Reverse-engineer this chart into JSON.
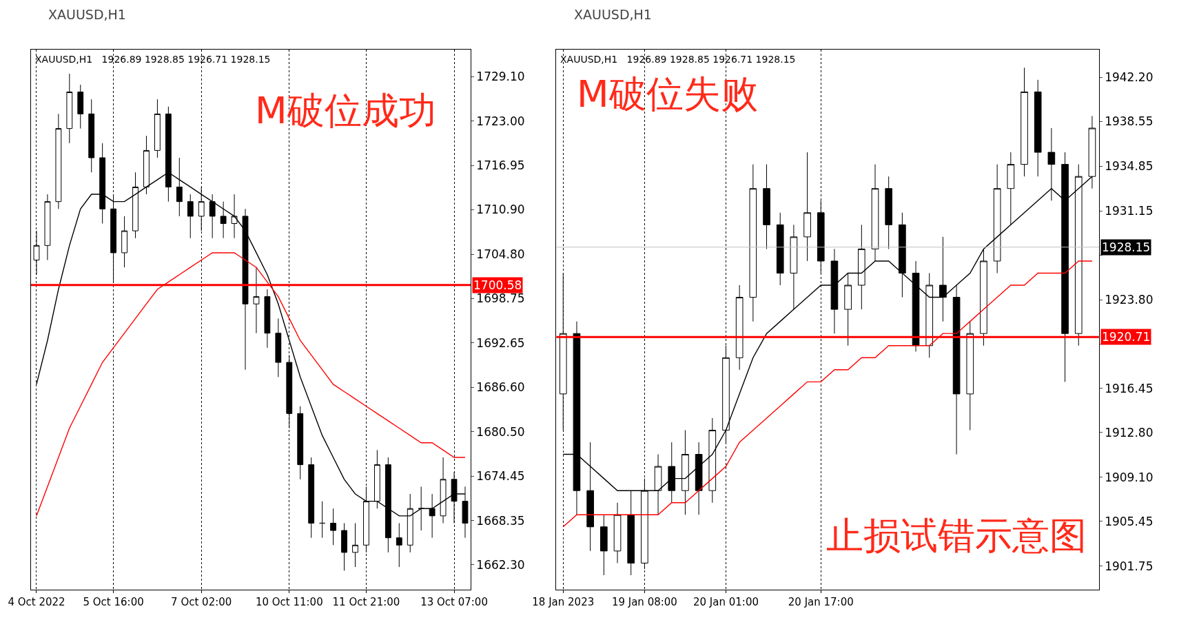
{
  "chart_data": [
    {
      "type": "candlestick",
      "title": "XAUUSD,H1",
      "annotations": [
        "XAUUSD,H1   1926.89 1928.85 1926.71 1928.15",
        "M破位成功"
      ],
      "categories": [
        "4 Oct 2022",
        null,
        null,
        null,
        null,
        null,
        null,
        "5 Oct 16:00",
        null,
        null,
        null,
        null,
        null,
        null,
        null,
        "7 Oct 02:00",
        null,
        null,
        null,
        null,
        null,
        null,
        null,
        "10 Oct 11:00",
        null,
        null,
        null,
        null,
        null,
        null,
        "11 Oct 21:00",
        null,
        null,
        null,
        null,
        null,
        null,
        null,
        "13 Oct 07:00",
        null
      ],
      "ohlc": [
        [
          1704,
          1708,
          1702,
          1706
        ],
        [
          1706,
          1713,
          1704,
          1712
        ],
        [
          1712,
          1724,
          1711,
          1722
        ],
        [
          1722,
          1729.5,
          1720,
          1727
        ],
        [
          1727,
          1728,
          1722,
          1724
        ],
        [
          1724,
          1726,
          1716,
          1718
        ],
        [
          1718,
          1720,
          1709,
          1711
        ],
        [
          1711,
          1713,
          1701,
          1705
        ],
        [
          1705,
          1710,
          1703,
          1708
        ],
        [
          1708,
          1716,
          1707,
          1714
        ],
        [
          1714,
          1721,
          1713,
          1719
        ],
        [
          1719,
          1726,
          1718,
          1724
        ],
        [
          1724,
          1725,
          1712,
          1714
        ],
        [
          1714,
          1718,
          1710,
          1712
        ],
        [
          1712,
          1713,
          1707,
          1710
        ],
        [
          1710,
          1714,
          1708,
          1712
        ],
        [
          1712,
          1713,
          1707,
          1710
        ],
        [
          1710,
          1712,
          1707,
          1709
        ],
        [
          1709,
          1713,
          1707,
          1710
        ],
        [
          1710,
          1711,
          1689,
          1698
        ],
        [
          1698,
          1703,
          1694,
          1699
        ],
        [
          1699,
          1700,
          1692,
          1694
        ],
        [
          1694,
          1696,
          1688,
          1690
        ],
        [
          1690,
          1691,
          1681,
          1683
        ],
        [
          1683,
          1684,
          1674,
          1676
        ],
        [
          1676,
          1677,
          1666,
          1668
        ],
        [
          1668,
          1671,
          1666,
          1668
        ],
        [
          1668,
          1670,
          1665,
          1667
        ],
        [
          1667,
          1668,
          1661.5,
          1664
        ],
        [
          1664,
          1668,
          1662,
          1665
        ],
        [
          1665,
          1673,
          1664,
          1671
        ],
        [
          1671,
          1678,
          1670,
          1676
        ],
        [
          1676,
          1677,
          1664,
          1666
        ],
        [
          1666,
          1668,
          1662,
          1665
        ],
        [
          1665,
          1672,
          1664,
          1670
        ],
        [
          1670,
          1673,
          1667,
          1670
        ],
        [
          1670,
          1672,
          1666,
          1669
        ],
        [
          1669,
          1677,
          1668,
          1674
        ],
        [
          1674,
          1675,
          1668,
          1671
        ],
        [
          1671,
          1673,
          1666,
          1668
        ]
      ],
      "series": [
        {
          "type": "line",
          "color": "#000000",
          "values": [
            1687,
            1693,
            1700,
            1706,
            1711,
            1713,
            1713,
            1712,
            1712,
            1713,
            1714,
            1715,
            1716,
            1715,
            1714,
            1713,
            1712,
            1711,
            1710,
            1708,
            1705,
            1702,
            1698,
            1693,
            1688,
            1684,
            1680,
            1677,
            1674,
            1672,
            1671,
            1671,
            1670,
            1669,
            1669,
            1670,
            1670,
            1671,
            1672,
            1672
          ]
        },
        {
          "type": "line",
          "color": "#ff0000",
          "values": [
            1669,
            1673,
            1677,
            1681,
            1684,
            1687,
            1690,
            1692,
            1694,
            1696,
            1698,
            1700,
            1701,
            1702,
            1703,
            1704,
            1705,
            1705,
            1705,
            1704,
            1703,
            1701,
            1699,
            1696,
            1693,
            1691,
            1689,
            1687,
            1686,
            1685,
            1684,
            1683,
            1682,
            1681,
            1680,
            1679,
            1679,
            1678,
            1677,
            1677
          ]
        }
      ],
      "ylim": [
        1658.9,
        1732.8
      ],
      "yticks": [
        {
          "value": 1729.1,
          "label": "1729.10"
        },
        {
          "value": 1723,
          "label": "1723.00"
        },
        1716.95,
        {
          "value": 1710.9,
          "label": "1710.90"
        },
        {
          "value": 1704.8,
          "label": "1704.80"
        },
        1698.75,
        1692.65,
        {
          "value": 1686.6,
          "label": "1686.60"
        },
        {
          "value": 1680.5,
          "label": "1680.50"
        },
        1674.45,
        1668.35,
        {
          "value": 1662.3,
          "label": "1662.30"
        }
      ],
      "ref_lines": [
        {
          "axis": "y",
          "value": 1700.58,
          "label": "1700.58",
          "color": "#ff0000"
        }
      ],
      "grid": "x",
      "legend": false
    },
    {
      "type": "candlestick",
      "title": "XAUUSD,H1",
      "annotations": [
        "XAUUSD,H1   1926.89 1928.85 1926.71 1928.15",
        "M破位失败",
        "止损试错示意图"
      ],
      "categories": [
        "18 Jan 2023",
        null,
        null,
        null,
        null,
        null,
        "19 Jan 08:00",
        null,
        null,
        null,
        null,
        null,
        "20 Jan 01:00",
        null,
        null,
        null,
        null,
        null,
        null,
        "20 Jan 17:00",
        null,
        null,
        null,
        null,
        null,
        null,
        null,
        null,
        null,
        null,
        null,
        null,
        null,
        null,
        null,
        null,
        null,
        null,
        null,
        null
      ],
      "ohlc": [
        [
          1916,
          1926,
          1913,
          1921
        ],
        [
          1921,
          1922,
          1906,
          1908
        ],
        [
          1908,
          1912,
          1903,
          1905
        ],
        [
          1905,
          1906,
          1901,
          1903
        ],
        [
          1903,
          1907,
          1902,
          1906
        ],
        [
          1906,
          1908,
          1901,
          1902
        ],
        [
          1902,
          1909,
          1901.5,
          1908
        ],
        [
          1908,
          1911,
          1906,
          1910
        ],
        [
          1910,
          1912,
          1907,
          1908
        ],
        [
          1908,
          1913,
          1906,
          1911
        ],
        [
          1911,
          1912,
          1906,
          1908
        ],
        [
          1908,
          1914,
          1907,
          1913
        ],
        [
          1913,
          1920,
          1912,
          1919
        ],
        [
          1919,
          1925,
          1918,
          1924
        ],
        [
          1924,
          1935,
          1922,
          1933
        ],
        [
          1933,
          1935,
          1928,
          1930
        ],
        [
          1930,
          1931,
          1925,
          1926
        ],
        [
          1926,
          1930,
          1923,
          1929
        ],
        [
          1929,
          1936,
          1927,
          1931
        ],
        [
          1931,
          1932,
          1926,
          1927
        ],
        [
          1927,
          1928,
          1921,
          1923
        ],
        [
          1923,
          1926,
          1920,
          1925
        ],
        [
          1925,
          1930,
          1923,
          1928
        ],
        [
          1928,
          1935,
          1927,
          1933
        ],
        [
          1933,
          1934,
          1928,
          1930
        ],
        [
          1930,
          1931,
          1924,
          1926
        ],
        [
          1926,
          1927,
          1919.5,
          1920
        ],
        [
          1920,
          1926,
          1919,
          1925
        ],
        [
          1925,
          1929,
          1922,
          1924
        ],
        [
          1924,
          1925,
          1911,
          1916
        ],
        [
          1916,
          1922,
          1913,
          1921
        ],
        [
          1921,
          1928,
          1920,
          1927
        ],
        [
          1927,
          1935,
          1926,
          1933
        ],
        [
          1933,
          1936,
          1930,
          1935
        ],
        [
          1935,
          1943,
          1934,
          1941
        ],
        [
          1941,
          1942,
          1934,
          1936
        ],
        [
          1936,
          1938,
          1932,
          1935
        ],
        [
          1935,
          1936,
          1917,
          1921
        ],
        [
          1921,
          1935,
          1920,
          1934
        ],
        [
          1934,
          1939,
          1933,
          1938
        ]
      ],
      "series": [
        {
          "type": "line",
          "color": "#000000",
          "values": [
            1911,
            1911,
            1910,
            1909,
            1908,
            1908,
            1908,
            1908,
            1909,
            1909,
            1910,
            1911,
            1913,
            1916,
            1919,
            1921,
            1922,
            1923,
            1924,
            1925,
            1925,
            1926,
            1926,
            1927,
            1927,
            1926,
            1925,
            1924,
            1924,
            1925,
            1926,
            1928,
            1929,
            1930,
            1931,
            1932,
            1933,
            1932,
            1933,
            1934
          ]
        },
        {
          "type": "line",
          "color": "#ff0000",
          "values": [
            1905,
            1906,
            1906,
            1906,
            1906,
            1906,
            1906,
            1906,
            1907,
            1907,
            1908,
            1909,
            1910,
            1912,
            1913,
            1914,
            1915,
            1916,
            1917,
            1917,
            1918,
            1918,
            1919,
            1919,
            1920,
            1920,
            1920,
            1920,
            1921,
            1921,
            1922,
            1923,
            1924,
            1925,
            1925,
            1926,
            1926,
            1926,
            1927,
            1927
          ]
        }
      ],
      "ylim": [
        1899.8,
        1944.5
      ],
      "yticks": [
        {
          "value": 1942.2,
          "label": "1942.20"
        },
        1938.55,
        1934.85,
        1931.15,
        {
          "value": 1927.5,
          "label": null
        },
        {
          "value": 1923.8,
          "label": "1923.80"
        },
        {
          "value": 1920.1,
          "label": null
        },
        1916.45,
        {
          "value": 1912.8,
          "label": "1912.80"
        },
        {
          "value": 1909.1,
          "label": "1909.10"
        },
        1905.45,
        1901.75
      ],
      "ref_lines": [
        {
          "axis": "y",
          "value": 1920.71,
          "label": "1920.71",
          "color": "#ff0000"
        },
        {
          "axis": "y",
          "value": 1928.15,
          "label": "1928.15",
          "color": "#c0c0c0"
        }
      ],
      "grid": "x",
      "legend": false
    }
  ]
}
